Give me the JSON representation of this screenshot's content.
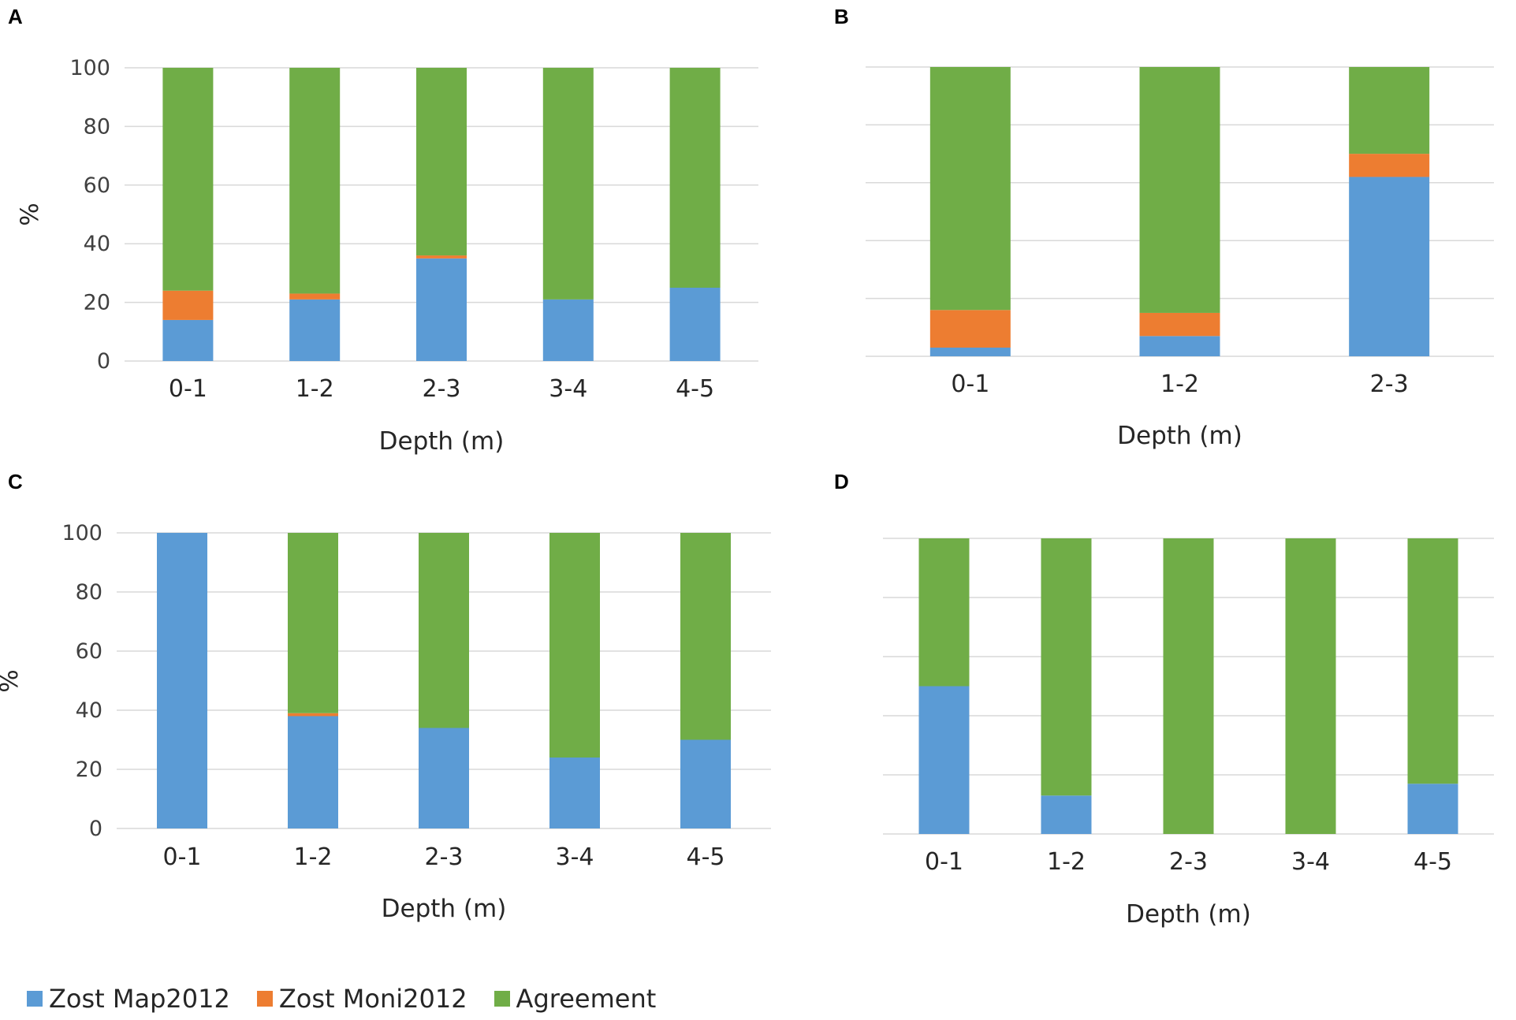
{
  "legend": [
    {
      "name": "Zost Map2012",
      "color": "#5b9bd5"
    },
    {
      "name": "Zost Moni2012",
      "color": "#ed7d31"
    },
    {
      "name": "Agreement",
      "color": "#70ad47"
    }
  ],
  "chart_data": [
    {
      "panel": "A",
      "type": "bar",
      "stacked": true,
      "xlabel": "Depth (m)",
      "ylabel": "%",
      "ylim": [
        0,
        100
      ],
      "yticks": [
        0,
        20,
        40,
        60,
        80,
        100
      ],
      "show_y_tick_labels": true,
      "categories": [
        "0-1",
        "1-2",
        "2-3",
        "3-4",
        "4-5"
      ],
      "series": [
        {
          "name": "Zost Map2012",
          "values": [
            14,
            21,
            35,
            21,
            25
          ]
        },
        {
          "name": "Zost Moni2012",
          "values": [
            10,
            2,
            1,
            0,
            0
          ]
        },
        {
          "name": "Agreement",
          "values": [
            76,
            77,
            64,
            79,
            75
          ]
        }
      ]
    },
    {
      "panel": "B",
      "type": "bar",
      "stacked": true,
      "xlabel": "Depth (m)",
      "ylabel": "",
      "ylim": [
        0,
        100
      ],
      "yticks": [
        0,
        20,
        40,
        60,
        80,
        100
      ],
      "show_y_tick_labels": false,
      "categories": [
        "0-1",
        "1-2",
        "2-3"
      ],
      "series": [
        {
          "name": "Zost Map2012",
          "values": [
            3,
            7,
            62
          ]
        },
        {
          "name": "Zost Moni2012",
          "values": [
            13,
            8,
            8
          ]
        },
        {
          "name": "Agreement",
          "values": [
            84,
            85,
            30
          ]
        }
      ]
    },
    {
      "panel": "C",
      "type": "bar",
      "stacked": true,
      "xlabel": "Depth (m)",
      "ylabel": "%",
      "ylim": [
        0,
        100
      ],
      "yticks": [
        0,
        20,
        40,
        60,
        80,
        100
      ],
      "show_y_tick_labels": true,
      "categories": [
        "0-1",
        "1-2",
        "2-3",
        "3-4",
        "4-5"
      ],
      "series": [
        {
          "name": "Zost Map2012",
          "values": [
            100,
            38,
            34,
            24,
            30
          ]
        },
        {
          "name": "Zost Moni2012",
          "values": [
            0,
            1,
            0,
            0,
            0
          ]
        },
        {
          "name": "Agreement",
          "values": [
            0,
            61,
            66,
            76,
            70
          ]
        }
      ]
    },
    {
      "panel": "D",
      "type": "bar",
      "stacked": true,
      "xlabel": "Depth (m)",
      "ylabel": "",
      "ylim": [
        0,
        100
      ],
      "yticks": [
        0,
        20,
        40,
        60,
        80,
        100
      ],
      "show_y_tick_labels": false,
      "categories": [
        "0-1",
        "1-2",
        "2-3",
        "3-4",
        "4-5"
      ],
      "series": [
        {
          "name": "Zost Map2012",
          "values": [
            50,
            13,
            0,
            0,
            17
          ]
        },
        {
          "name": "Zost Moni2012",
          "values": [
            0,
            0,
            0,
            0,
            0
          ]
        },
        {
          "name": "Agreement",
          "values": [
            50,
            87,
            100,
            100,
            83
          ]
        }
      ]
    }
  ]
}
